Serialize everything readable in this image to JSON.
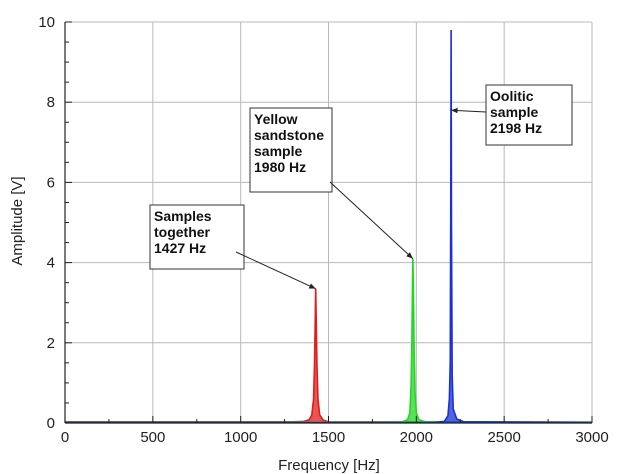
{
  "chart_data": {
    "type": "line",
    "title": "",
    "xlabel": "Frequency [Hz]",
    "ylabel": "Amplitude [V]",
    "xlim": [
      0,
      3000
    ],
    "ylim": [
      0,
      10
    ],
    "x_ticks": [
      0,
      500,
      1000,
      1500,
      2000,
      2500,
      3000
    ],
    "y_ticks": [
      0,
      2,
      4,
      6,
      8,
      10
    ],
    "grid": true,
    "legend": "none",
    "series": [
      {
        "color": "#e21b1b",
        "points": [
          [
            0,
            0.03
          ],
          [
            1300,
            0.03
          ],
          [
            1360,
            0.04
          ],
          [
            1390,
            0.08
          ],
          [
            1405,
            0.2
          ],
          [
            1415,
            0.6
          ],
          [
            1420,
            1.4
          ],
          [
            1424,
            2.4
          ],
          [
            1427,
            3.35
          ],
          [
            1430,
            2.6
          ],
          [
            1434,
            1.5
          ],
          [
            1440,
            0.6
          ],
          [
            1450,
            0.2
          ],
          [
            1470,
            0.07
          ],
          [
            1500,
            0.03
          ],
          [
            3000,
            0.02
          ]
        ]
      },
      {
        "color": "#24d624",
        "points": [
          [
            0,
            0.02
          ],
          [
            1850,
            0.02
          ],
          [
            1920,
            0.03
          ],
          [
            1950,
            0.08
          ],
          [
            1963,
            0.25
          ],
          [
            1970,
            0.9
          ],
          [
            1975,
            2.1
          ],
          [
            1978,
            3.4
          ],
          [
            1980,
            4.1
          ],
          [
            1983,
            3.5
          ],
          [
            1987,
            2.0
          ],
          [
            1992,
            0.8
          ],
          [
            2000,
            0.25
          ],
          [
            2015,
            0.08
          ],
          [
            2050,
            0.03
          ],
          [
            3000,
            0.02
          ]
        ]
      },
      {
        "color": "#1a2fd6",
        "points": [
          [
            0,
            0.01
          ],
          [
            2100,
            0.01
          ],
          [
            2160,
            0.04
          ],
          [
            2180,
            0.18
          ],
          [
            2188,
            0.6
          ],
          [
            2193,
            1.5
          ],
          [
            2196,
            5.5
          ],
          [
            2198,
            9.8
          ],
          [
            2200,
            5.0
          ],
          [
            2204,
            1.2
          ],
          [
            2210,
            0.35
          ],
          [
            2230,
            0.1
          ],
          [
            2270,
            0.03
          ],
          [
            3000,
            0.01
          ]
        ]
      }
    ],
    "annotations": [
      {
        "lines": [
          "Samples",
          "together",
          "1427 Hz"
        ],
        "target": [
          1427,
          3.35
        ]
      },
      {
        "lines": [
          "Yellow",
          "sandstone",
          "sample",
          "1980 Hz"
        ],
        "target": [
          1980,
          4.1
        ]
      },
      {
        "lines": [
          "Oolitic",
          "sample",
          "2198 Hz"
        ],
        "target": [
          2198,
          7.8
        ]
      }
    ]
  }
}
